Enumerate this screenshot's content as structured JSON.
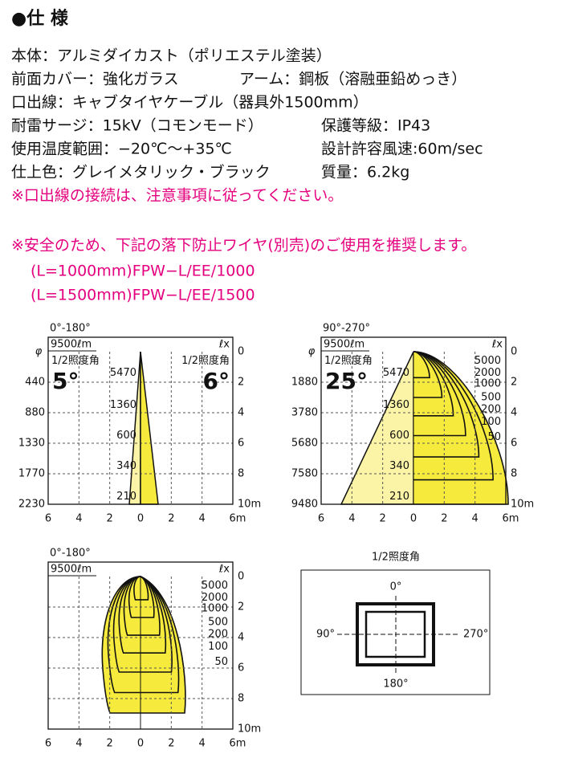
{
  "header": {
    "title": "●仕 様"
  },
  "specs": [
    [
      "本体：アルミダイカスト（ポリエステル塗装）"
    ],
    [
      "前面カバー：強化ガラス",
      "アーム：鋼板（溶融亜鉛めっき）"
    ],
    [
      "口出線：キャブタイヤケーブル（器具外1500mm）"
    ],
    [
      "耐雷サージ：15kV（コモンモード）",
      "保護等級：IP43"
    ],
    [
      "使用温度範囲：−20℃〜+35℃",
      "設計許容風速:60m/sec"
    ],
    [
      "仕上色：グレイメタリック・ブラック",
      "質量：6.2kg"
    ]
  ],
  "notes": [
    "※口出線の接続は、注意事項に従ってください。",
    "※安全のため、下記の落下防止ワイヤ(別売)のご使用を推奨します。",
    "(L=1000mm)FPW−L/EE/1000",
    "(L=1500mm)FPW−L/EE/1500"
  ],
  "diagrams": [
    {
      "title": "0°-180°",
      "flux": "9500ℓm",
      "unit": "ℓx",
      "phi": "φ",
      "left_labels": [
        "440",
        "880",
        "1330",
        "1770",
        "2230"
      ],
      "right_labels": [
        "0",
        "2",
        "4",
        "6",
        "8",
        "10m"
      ],
      "x_labels": [
        "6",
        "4",
        "2",
        "0",
        "2",
        "4",
        "6m"
      ],
      "half_label_left": "1/2照度角",
      "half_label_right": "1/2照度角",
      "angle_left": "5°",
      "angle_right": "6°",
      "beam_labels": [
        "5470",
        "1360",
        "600",
        "340",
        "210"
      ]
    },
    {
      "title": "90°-270°",
      "flux": "9500ℓm",
      "unit": "ℓx",
      "phi": "φ",
      "left_labels": [
        "1880",
        "3780",
        "5680",
        "7580",
        "9480"
      ],
      "right_labels": [
        "0",
        "2",
        "4",
        "6",
        "8",
        "10m"
      ],
      "x_labels": [
        "6",
        "4",
        "2",
        "0",
        "2",
        "4",
        "6m"
      ],
      "half_label_left": "1/2照度角",
      "angle_left": "25°",
      "beam_labels": [
        "5470",
        "1360",
        "600",
        "340",
        "210"
      ],
      "isolux_labels": [
        "5000",
        "2000",
        "1000",
        "500",
        "200",
        "100",
        "50"
      ]
    },
    {
      "title": "0°-180°",
      "flux": "9500ℓm",
      "unit": "ℓx",
      "right_labels": [
        "0",
        "2",
        "4",
        "6",
        "8",
        "10m"
      ],
      "x_labels": [
        "6",
        "4",
        "2",
        "0",
        "2",
        "4",
        "6m"
      ],
      "isolux_labels": [
        "5000",
        "2000",
        "1000",
        "500",
        "200",
        "100",
        "50"
      ]
    }
  ],
  "fixture": {
    "title": "1/2照度角",
    "top": "0°",
    "left": "90°",
    "right": "270°",
    "bottom": "180°"
  }
}
